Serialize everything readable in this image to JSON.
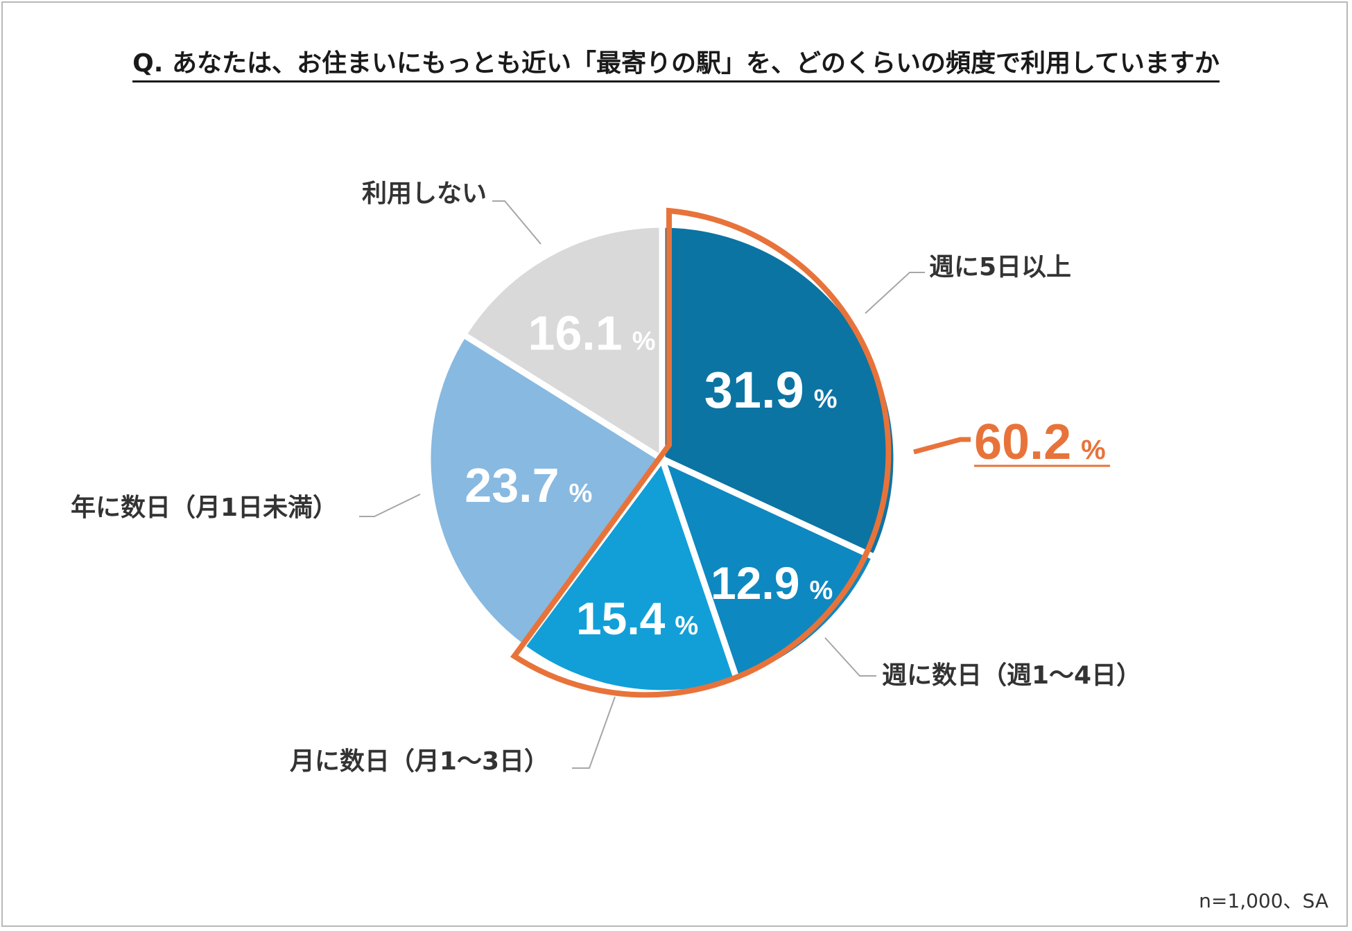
{
  "chart_data": {
    "type": "pie",
    "title": "Q. あなたは、お住まいにもっとも近い「最寄りの駅」を、どのくらいの頻度で利用していますか",
    "slices": [
      {
        "label": "週に5日以上",
        "value": 31.9,
        "value_label": "31.9",
        "color": "#0b74a3"
      },
      {
        "label": "週に数日（週1～4日）",
        "value": 12.9,
        "value_label": "12.9",
        "color": "#0e88c0"
      },
      {
        "label": "月に数日（月1～3日）",
        "value": 15.4,
        "value_label": "15.4",
        "color": "#129fd7"
      },
      {
        "label": "年に数日（月1日未満）",
        "value": 23.7,
        "value_label": "23.7",
        "color": "#88b9e0"
      },
      {
        "label": "利用しない",
        "value": 16.1,
        "value_label": "16.1",
        "color": "#d9d9d9"
      }
    ],
    "percent_sign": "%",
    "highlight": {
      "value": 60.2,
      "value_label": "60.2",
      "color": "#e8733a",
      "slices": [
        0,
        1,
        2
      ]
    },
    "note": "n=1,000、SA"
  }
}
